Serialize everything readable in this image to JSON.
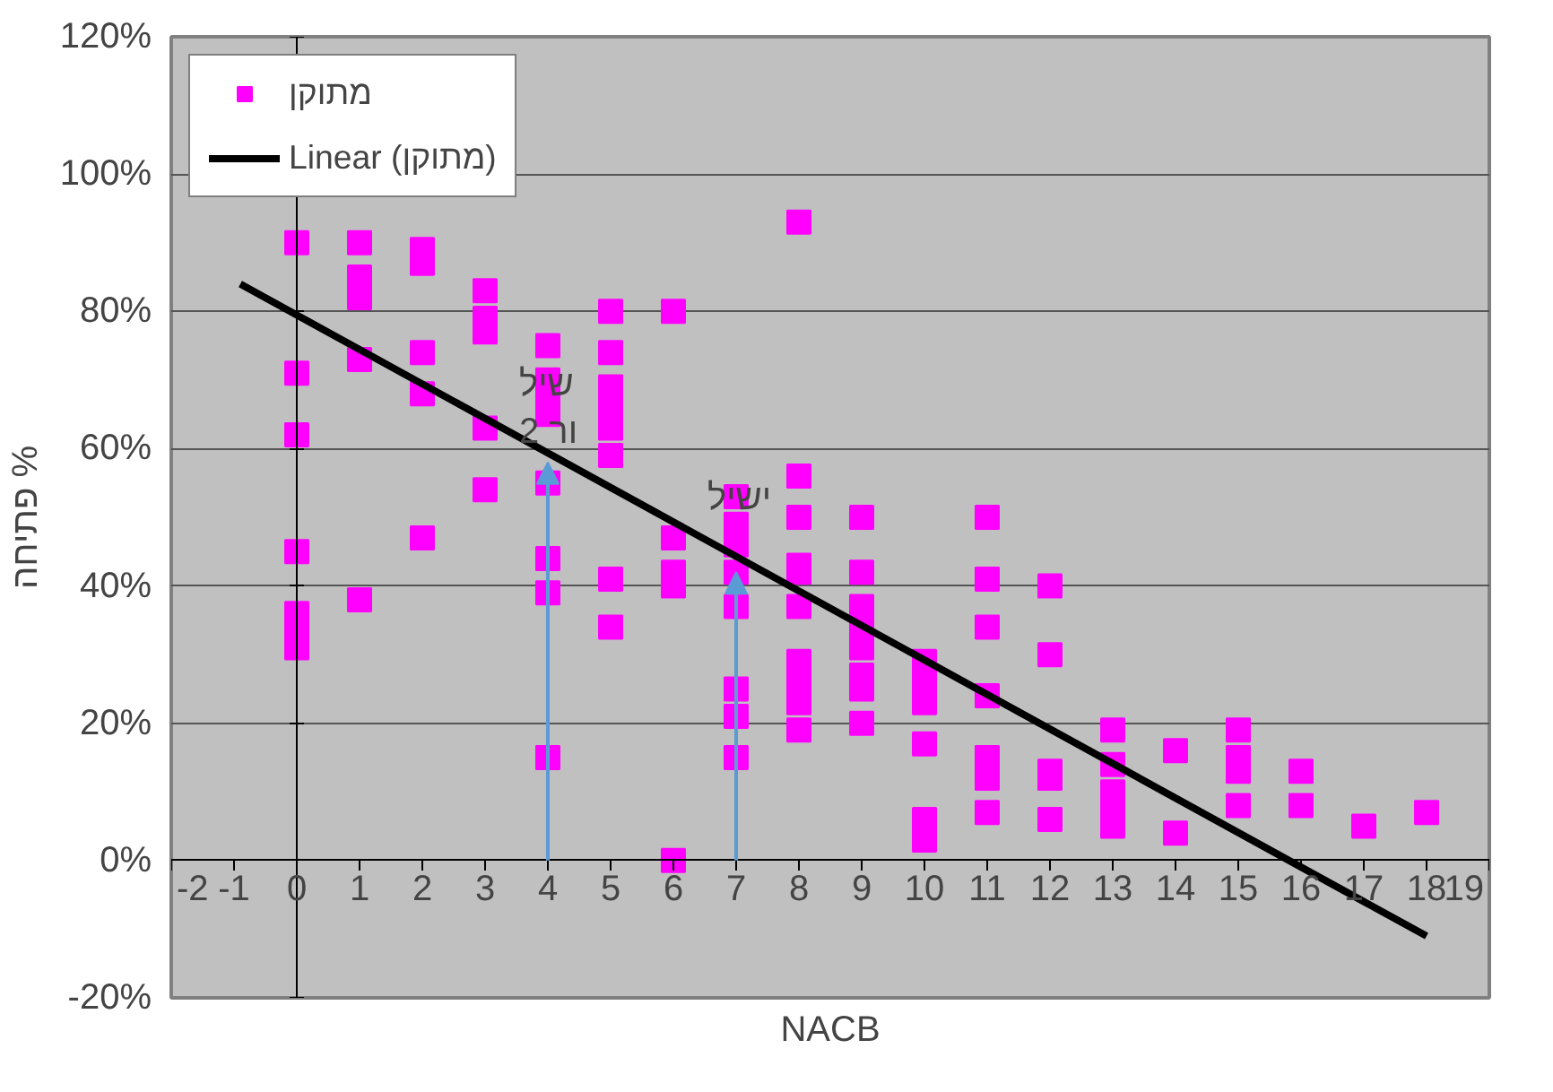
{
  "chart_data": {
    "type": "scatter",
    "xlabel": "NACB",
    "ylabel": "פתיחה %",
    "xlim": [
      -2,
      19
    ],
    "xticks": [
      -2,
      -1,
      0,
      1,
      2,
      3,
      4,
      5,
      6,
      7,
      8,
      9,
      10,
      11,
      12,
      13,
      14,
      15,
      16,
      17,
      18,
      19
    ],
    "ylim": [
      -20,
      120
    ],
    "yticks": [
      {
        "value": -20,
        "label": "-20%"
      },
      {
        "value": 0,
        "label": "0%"
      },
      {
        "value": 20,
        "label": "20%"
      },
      {
        "value": 40,
        "label": "40%"
      },
      {
        "value": 60,
        "label": "60%"
      },
      {
        "value": 80,
        "label": "80%"
      },
      {
        "value": 100,
        "label": "100%"
      },
      {
        "value": 120,
        "label": "120%"
      }
    ],
    "grid": "y",
    "legend": "top left",
    "marker": "square",
    "series": [
      {
        "name": "מתוקן",
        "color": "#ff00ff",
        "x": [
          0,
          0,
          0,
          0,
          0,
          0,
          0,
          1,
          1,
          1,
          1,
          1,
          2,
          2,
          2,
          2,
          2,
          3,
          3,
          3,
          3,
          3,
          4,
          4,
          4,
          4,
          4,
          4,
          4,
          4,
          5,
          5,
          5,
          5,
          5,
          5,
          5,
          5,
          6,
          6,
          6,
          6,
          6,
          7,
          7,
          7,
          7,
          7,
          7,
          7,
          7,
          8,
          8,
          8,
          8,
          8,
          8,
          8,
          8,
          8,
          8,
          9,
          9,
          9,
          9,
          9,
          9,
          9,
          9,
          10,
          10,
          10,
          10,
          10,
          10,
          11,
          11,
          11,
          11,
          11,
          11,
          11,
          12,
          12,
          12,
          12,
          12,
          13,
          13,
          13,
          13,
          13,
          14,
          14,
          15,
          15,
          15,
          15,
          16,
          16,
          17,
          18
        ],
        "values": [
          90,
          71,
          62,
          45,
          36,
          33,
          31,
          90,
          85,
          82,
          73,
          38,
          89,
          87,
          74,
          68,
          47,
          83,
          79,
          77,
          63,
          54,
          75,
          70,
          68,
          65,
          55,
          44,
          39,
          15,
          80,
          74,
          69,
          66,
          63,
          59,
          41,
          34,
          80,
          47,
          42,
          40,
          0,
          53,
          49,
          46,
          42,
          37,
          25,
          21,
          15,
          93,
          56,
          50,
          43,
          42,
          37,
          29,
          26,
          23,
          19,
          50,
          42,
          37,
          34,
          31,
          27,
          25,
          20,
          29,
          26,
          23,
          17,
          6,
          3,
          50,
          41,
          34,
          24,
          15,
          12,
          7,
          40,
          30,
          13,
          12,
          6,
          19,
          14,
          10,
          7,
          5,
          16,
          4,
          19,
          15,
          13,
          8,
          13,
          8,
          5,
          7
        ]
      },
      {
        "name": "Linear (מתוקן)",
        "color": "#000000",
        "type": "line",
        "marker": "none",
        "line_style": "solid",
        "x": [
          -0.9,
          18
        ],
        "values": [
          84,
          -11
        ]
      }
    ],
    "annotations": [
      {
        "text": "שיל\nור 2",
        "x": 4,
        "y": 58
      },
      {
        "text": "ישיל",
        "x": 7,
        "y": 42
      }
    ]
  }
}
